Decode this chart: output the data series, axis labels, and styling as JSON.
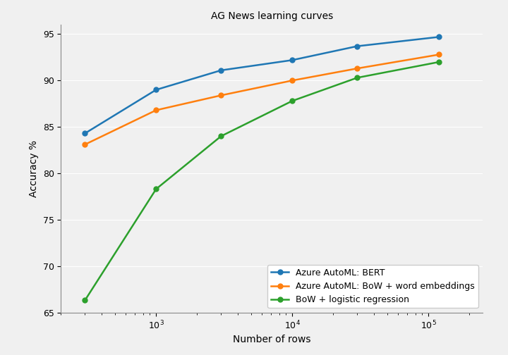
{
  "title": "AG News learning curves",
  "xlabel": "Number of rows",
  "ylabel": "Accuracy %",
  "ylim": [
    65,
    96
  ],
  "yticks": [
    65,
    70,
    75,
    80,
    85,
    90,
    95
  ],
  "xlim": [
    200,
    250000
  ],
  "series": [
    {
      "label": "Azure AutoML: BERT",
      "color": "#1f77b4",
      "x": [
        300,
        1000,
        3000,
        10000,
        30000,
        120000
      ],
      "y": [
        84.3,
        89.0,
        91.1,
        92.2,
        93.7,
        94.7
      ]
    },
    {
      "label": "Azure AutoML: BoW + word embeddings",
      "color": "#ff7f0e",
      "x": [
        300,
        1000,
        3000,
        10000,
        30000,
        120000
      ],
      "y": [
        83.1,
        86.8,
        88.4,
        90.0,
        91.3,
        92.8
      ]
    },
    {
      "label": "BoW + logistic regression",
      "color": "#2ca02c",
      "x": [
        300,
        1000,
        3000,
        10000,
        30000,
        120000
      ],
      "y": [
        66.3,
        78.3,
        84.0,
        87.8,
        90.3,
        92.0
      ]
    }
  ],
  "background_color": "#f0f0f0",
  "axes_background": "#f0f0f0",
  "grid_color": "#ffffff",
  "legend_loc": "lower right",
  "marker": "o",
  "markersize": 5,
  "linewidth": 1.8,
  "title_fontsize": 10,
  "label_fontsize": 10,
  "tick_fontsize": 9,
  "legend_fontsize": 9
}
